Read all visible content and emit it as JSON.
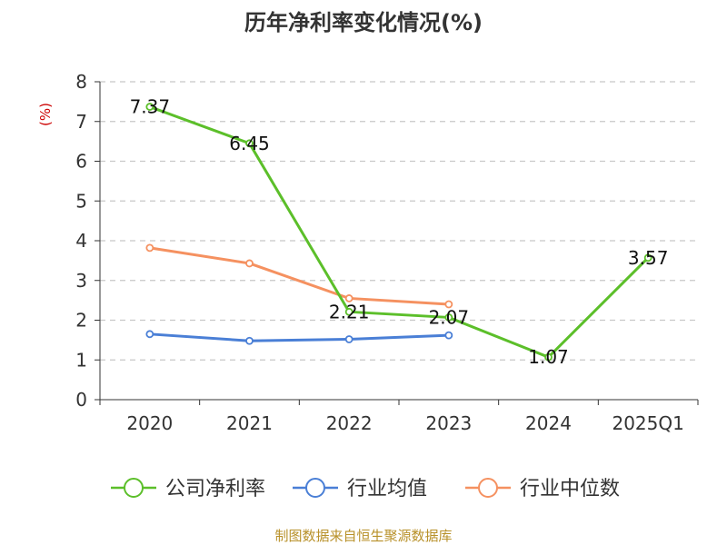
{
  "chart_data": {
    "type": "line",
    "title": "历年净利率变化情况(%)",
    "ylabel": "(%)",
    "xlabel": "",
    "categories": [
      "2020",
      "2021",
      "2022",
      "2023",
      "2024",
      "2025Q1"
    ],
    "ylim": [
      0,
      8
    ],
    "yticks": [
      0,
      1,
      2,
      3,
      4,
      5,
      6,
      7,
      8
    ],
    "grid": true,
    "legend_position": "bottom",
    "series": [
      {
        "name": "公司净利率",
        "color": "#5cbf2a",
        "values": [
          7.37,
          6.45,
          2.21,
          2.07,
          1.07,
          3.57
        ],
        "labels": [
          "7.37",
          "6.45",
          "2.21",
          "2.07",
          "1.07",
          "3.57"
        ],
        "show_labels": true
      },
      {
        "name": "行业均值",
        "color": "#4a7fd6",
        "values": [
          1.65,
          1.48,
          1.52,
          1.62,
          null,
          null
        ],
        "show_labels": false
      },
      {
        "name": "行业中位数",
        "color": "#f59160",
        "values": [
          3.82,
          3.43,
          2.55,
          2.4,
          null,
          null
        ],
        "show_labels": false
      }
    ]
  },
  "footer": {
    "source": "制图数据来自恒生聚源数据库"
  }
}
